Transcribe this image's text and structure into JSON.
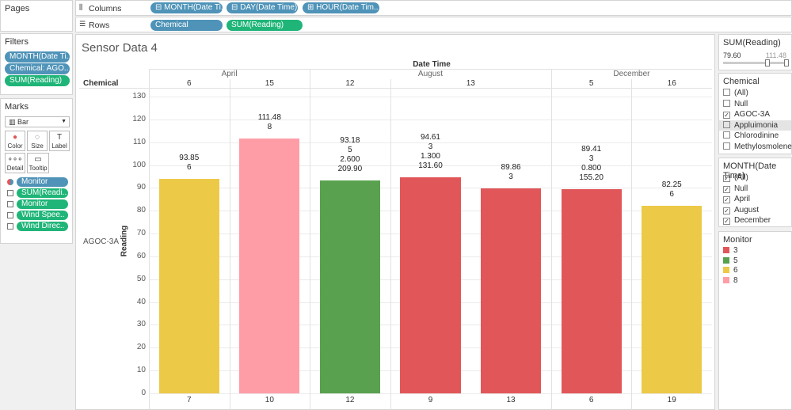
{
  "pages": {
    "title": "Pages"
  },
  "columns_shelf": {
    "label": "Columns",
    "pills": [
      "⊟ MONTH(Date Ti..",
      "⊟ DAY(Date Time)",
      "⊞ HOUR(Date Tim.."
    ]
  },
  "rows_shelf": {
    "label": "Rows",
    "pills": [
      "Chemical",
      "SUM(Reading)"
    ]
  },
  "filters": {
    "title": "Filters",
    "pills": [
      "MONTH(Date Ti..",
      "Chemical: AGO..",
      "SUM(Reading)"
    ]
  },
  "marks": {
    "title": "Marks",
    "type": "Bar",
    "buttons": [
      "Color",
      "Size",
      "Label",
      "Detail",
      "Tooltip"
    ],
    "fields": [
      {
        "label": "Monitor",
        "color": "#4f93b8"
      },
      {
        "label": "SUM(Readi..",
        "color": "#1fb578"
      },
      {
        "label": "Monitor",
        "color": "#1fb578"
      },
      {
        "label": "Wind Spee..",
        "color": "#1fb578"
      },
      {
        "label": "Wind Direc..",
        "color": "#1fb578"
      }
    ]
  },
  "sheet": {
    "title": "Sensor Data 4"
  },
  "chart_data": {
    "type": "bar",
    "title": "Sensor Data 4",
    "column_header": "Date Time",
    "row_header": "Chemical",
    "row_value": "AGOC-3A",
    "ylabel": "Reading",
    "ylim": [
      0,
      130
    ],
    "yticks": [
      0,
      10,
      20,
      30,
      40,
      50,
      60,
      70,
      80,
      90,
      100,
      110,
      120,
      130
    ],
    "months": [
      {
        "name": "April",
        "days": [
          "6",
          "15"
        ]
      },
      {
        "name": "August",
        "days": [
          "12",
          "13"
        ]
      },
      {
        "name": "December",
        "days": [
          "5",
          "16"
        ]
      }
    ],
    "bars": [
      {
        "month": "April",
        "day": "6",
        "hour": "7",
        "value": 93.85,
        "monitor": "6",
        "labels": [
          "93.85",
          "6"
        ]
      },
      {
        "month": "April",
        "day": "15",
        "hour": "10",
        "value": 111.48,
        "monitor": "8",
        "labels": [
          "111.48",
          "8"
        ]
      },
      {
        "month": "August",
        "day": "12",
        "hour": "12",
        "value": 93.18,
        "monitor": "5",
        "labels": [
          "93.18",
          "5",
          "2.600",
          "209.90"
        ]
      },
      {
        "month": "August",
        "day": "13",
        "hour": "9",
        "value": 94.61,
        "monitor": "3",
        "labels": [
          "94.61",
          "3",
          "1.300",
          "131.60"
        ]
      },
      {
        "month": "August",
        "day": "13",
        "hour": "13",
        "value": 89.86,
        "monitor": "3",
        "labels": [
          "89.86",
          "3"
        ]
      },
      {
        "month": "December",
        "day": "5",
        "hour": "6",
        "value": 89.41,
        "monitor": "3",
        "labels": [
          "89.41",
          "3",
          "0.800",
          "155.20"
        ]
      },
      {
        "month": "December",
        "day": "16",
        "hour": "19",
        "value": 82.25,
        "monitor": "6",
        "labels": [
          "82.25",
          "6"
        ]
      }
    ],
    "monitor_colors": {
      "3": "#e15759",
      "5": "#59a14f",
      "6": "#edc948",
      "8": "#ff9da7"
    }
  },
  "sum_reading_filter": {
    "title": "SUM(Reading)",
    "min": "79.60",
    "max": "111.48"
  },
  "chemical_filter": {
    "title": "Chemical",
    "items": [
      {
        "label": "(All)",
        "checked": false
      },
      {
        "label": "Null",
        "checked": false
      },
      {
        "label": "AGOC-3A",
        "checked": true
      },
      {
        "label": "Appluimonia",
        "checked": false
      },
      {
        "label": "Chlorodinine",
        "checked": false
      },
      {
        "label": "Methylosmolene",
        "checked": false
      }
    ]
  },
  "month_filter": {
    "title": "MONTH(Date Time)",
    "items": [
      {
        "label": "(All)",
        "checked": true
      },
      {
        "label": "Null",
        "checked": true
      },
      {
        "label": "April",
        "checked": true
      },
      {
        "label": "August",
        "checked": true
      },
      {
        "label": "December",
        "checked": true
      }
    ]
  },
  "monitor_legend": {
    "title": "Monitor",
    "items": [
      {
        "label": "3",
        "color": "#e15759"
      },
      {
        "label": "5",
        "color": "#59a14f"
      },
      {
        "label": "6",
        "color": "#edc948"
      },
      {
        "label": "8",
        "color": "#ff9da7"
      }
    ]
  }
}
